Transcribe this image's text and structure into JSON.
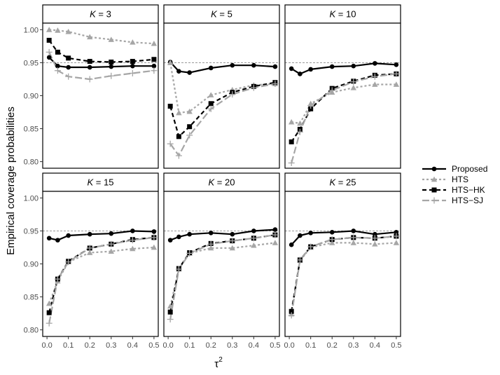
{
  "chart_data": {
    "type": "line",
    "ylabel": "Empirical coverage probabilities",
    "xlabel": "τ",
    "xlabel_superscript": "2",
    "reference_line": 0.95,
    "xlim": [
      -0.02,
      0.52
    ],
    "ylim": [
      0.79,
      1.01
    ],
    "x_ticks": [
      "0.0",
      "0.1",
      "0.2",
      "0.3",
      "0.4",
      "0.5"
    ],
    "x_tick_values": [
      0.0,
      0.1,
      0.2,
      0.3,
      0.4,
      0.5
    ],
    "y_ticks": [
      "0.80",
      "0.85",
      "0.90",
      "0.95",
      "1.00"
    ],
    "y_tick_values": [
      0.8,
      0.85,
      0.9,
      0.95,
      1.0
    ],
    "x": [
      0.01,
      0.05,
      0.1,
      0.2,
      0.3,
      0.4,
      0.5
    ],
    "series_styles": [
      {
        "name": "Proposed",
        "color": "#000000",
        "dash": "solid",
        "marker": "circle"
      },
      {
        "name": "HTS",
        "color": "#a6a6a6",
        "dash": "dotted",
        "marker": "triangle"
      },
      {
        "name": "HTS−HK",
        "color": "#000000",
        "dash": "dashed",
        "marker": "square"
      },
      {
        "name": "HTS−SJ",
        "color": "#a6a6a6",
        "dash": "longdash",
        "marker": "plus"
      }
    ],
    "panels": [
      {
        "label": "K = 3",
        "k_symbol": "K",
        "k_value": "= 3",
        "series": [
          {
            "name": "Proposed",
            "values": [
              0.958,
              0.945,
              0.943,
              0.943,
              0.944,
              0.945,
              0.945
            ]
          },
          {
            "name": "HTS",
            "values": [
              1.0,
              0.999,
              0.997,
              0.989,
              0.985,
              0.981,
              0.979
            ]
          },
          {
            "name": "HTS−HK",
            "values": [
              0.984,
              0.966,
              0.957,
              0.952,
              0.951,
              0.952,
              0.955
            ]
          },
          {
            "name": "HTS−SJ",
            "values": [
              0.966,
              0.938,
              0.929,
              0.925,
              0.93,
              0.934,
              0.938
            ]
          }
        ]
      },
      {
        "label": "K = 5",
        "k_symbol": "K",
        "k_value": "= 5",
        "series": [
          {
            "name": "Proposed",
            "values": [
              0.951,
              0.937,
              0.935,
              0.942,
              0.946,
              0.946,
              0.944
            ]
          },
          {
            "name": "HTS",
            "values": [
              0.95,
              0.874,
              0.876,
              0.901,
              0.909,
              0.916,
              0.918
            ]
          },
          {
            "name": "HTS−HK",
            "values": [
              0.884,
              0.838,
              0.853,
              0.888,
              0.905,
              0.914,
              0.92
            ]
          },
          {
            "name": "HTS−SJ",
            "values": [
              0.827,
              0.809,
              0.84,
              0.88,
              0.902,
              0.912,
              0.918
            ]
          }
        ]
      },
      {
        "label": "K = 10",
        "k_symbol": "K",
        "k_value": "= 10",
        "series": [
          {
            "name": "Proposed",
            "values": [
              0.941,
              0.933,
              0.94,
              0.944,
              0.945,
              0.949,
              0.947
            ]
          },
          {
            "name": "HTS",
            "values": [
              0.86,
              0.858,
              0.888,
              0.905,
              0.912,
              0.917,
              0.917
            ]
          },
          {
            "name": "HTS−HK",
            "values": [
              0.83,
              0.849,
              0.88,
              0.911,
              0.922,
              0.931,
              0.933
            ]
          },
          {
            "name": "HTS−SJ",
            "values": [
              0.798,
              0.845,
              0.885,
              0.908,
              0.921,
              0.929,
              0.933
            ]
          }
        ]
      },
      {
        "label": "K = 15",
        "k_symbol": "K",
        "k_value": "= 15",
        "series": [
          {
            "name": "Proposed",
            "values": [
              0.939,
              0.936,
              0.943,
              0.945,
              0.946,
              0.95,
              0.949
            ]
          },
          {
            "name": "HTS",
            "values": [
              0.84,
              0.874,
              0.903,
              0.917,
              0.919,
              0.923,
              0.925
            ]
          },
          {
            "name": "HTS−HK",
            "values": [
              0.826,
              0.877,
              0.904,
              0.924,
              0.93,
              0.937,
              0.94
            ]
          },
          {
            "name": "HTS−SJ",
            "values": [
              0.81,
              0.877,
              0.903,
              0.924,
              0.93,
              0.936,
              0.94
            ]
          }
        ]
      },
      {
        "label": "K = 20",
        "k_symbol": "K",
        "k_value": "= 20",
        "series": [
          {
            "name": "Proposed",
            "values": [
              0.936,
              0.941,
              0.945,
              0.947,
              0.945,
              0.95,
              0.952
            ]
          },
          {
            "name": "HTS",
            "values": [
              0.836,
              0.892,
              0.916,
              0.924,
              0.924,
              0.928,
              0.932
            ]
          },
          {
            "name": "HTS−HK",
            "values": [
              0.827,
              0.893,
              0.917,
              0.931,
              0.935,
              0.939,
              0.944
            ]
          },
          {
            "name": "HTS−SJ",
            "values": [
              0.816,
              0.892,
              0.916,
              0.93,
              0.935,
              0.939,
              0.944
            ]
          }
        ]
      },
      {
        "label": "K = 25",
        "k_symbol": "K",
        "k_value": "= 25",
        "series": [
          {
            "name": "Proposed",
            "values": [
              0.929,
              0.943,
              0.947,
              0.948,
              0.95,
              0.945,
              0.948
            ]
          },
          {
            "name": "HTS",
            "values": [
              0.824,
              0.905,
              0.925,
              0.932,
              0.932,
              0.93,
              0.932
            ]
          },
          {
            "name": "HTS−HK",
            "values": [
              0.828,
              0.906,
              0.926,
              0.937,
              0.94,
              0.939,
              0.942
            ]
          },
          {
            "name": "HTS−SJ",
            "values": [
              0.822,
              0.906,
              0.926,
              0.937,
              0.94,
              0.939,
              0.942
            ]
          }
        ]
      }
    ],
    "legend_position": "right"
  }
}
